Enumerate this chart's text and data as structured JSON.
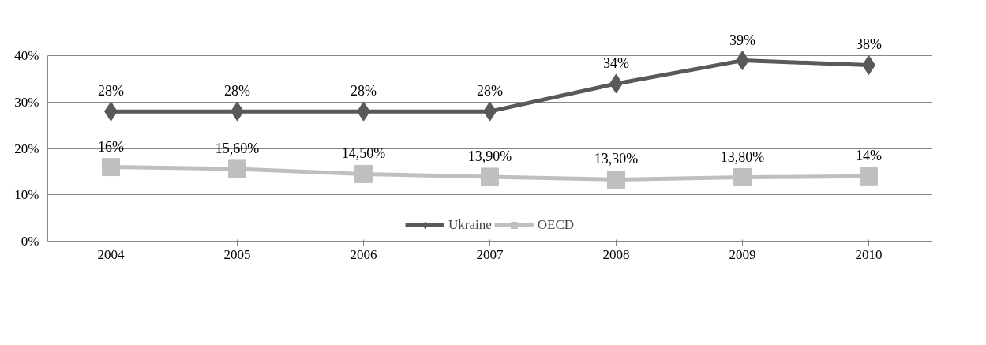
{
  "chart_data": {
    "type": "line",
    "categories": [
      "2004",
      "2005",
      "2006",
      "2007",
      "2008",
      "2009",
      "2010"
    ],
    "series": [
      {
        "name": "Ukraine",
        "color": "#595959",
        "marker": "diamond",
        "values": [
          28,
          28,
          28,
          28,
          34,
          39,
          38
        ],
        "value_labels": [
          "28%",
          "28%",
          "28%",
          "28%",
          "34%",
          "39%",
          "38%"
        ]
      },
      {
        "name": "OECD",
        "color": "#bfbfbf",
        "marker": "square",
        "values": [
          16,
          15.6,
          14.5,
          13.9,
          13.3,
          13.8,
          14
        ],
        "value_labels": [
          "16%",
          "15,60%",
          "14,50%",
          "13,90%",
          "13,30%",
          "13,80%",
          "14%"
        ]
      }
    ],
    "ylim": [
      0,
      40
    ],
    "yticks": [
      {
        "value": 0,
        "label": "0%"
      },
      {
        "value": 10,
        "label": "10%"
      },
      {
        "value": 20,
        "label": "20%"
      },
      {
        "value": 30,
        "label": "30%"
      },
      {
        "value": 40,
        "label": "40%"
      }
    ],
    "grid": "y",
    "legend": "bottom",
    "line_style": "solid"
  }
}
